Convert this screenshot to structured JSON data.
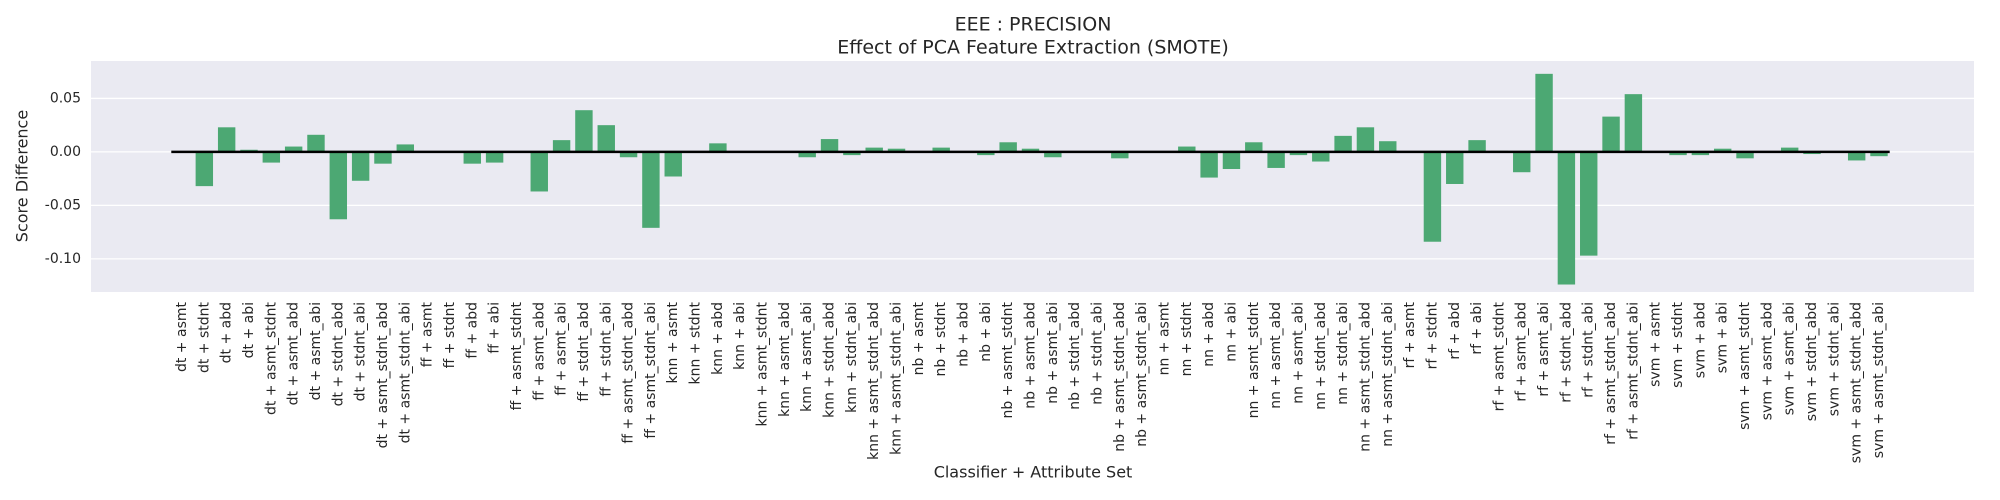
{
  "chart_data": {
    "type": "bar",
    "title": "EEE : PRECISION",
    "subtitle": "Effect of PCA Feature Extraction (SMOTE)",
    "x_label": "Classifier + Attribute Set",
    "y_label": "Score Difference",
    "categories": [
      "dt + asmt",
      "dt + stdnt",
      "dt + abd",
      "dt + abi",
      "dt + asmt_stdnt",
      "dt + asmt_abd",
      "dt + asmt_abi",
      "dt + stdnt_abd",
      "dt + stdnt_abi",
      "dt + asmt_stdnt_abd",
      "dt + asmt_stdnt_abi",
      "ff + asmt",
      "ff + stdnt",
      "ff + abd",
      "ff + abi",
      "ff + asmt_stdnt",
      "ff + asmt_abd",
      "ff + asmt_abi",
      "ff + stdnt_abd",
      "ff + stdnt_abi",
      "ff + asmt_stdnt_abd",
      "ff + asmt_stdnt_abi",
      "knn + asmt",
      "knn + stdnt",
      "knn + abd",
      "knn + abi",
      "knn + asmt_stdnt",
      "knn + asmt_abd",
      "knn + asmt_abi",
      "knn + stdnt_abd",
      "knn + stdnt_abi",
      "knn + asmt_stdnt_abd",
      "knn + asmt_stdnt_abi",
      "nb + asmt",
      "nb + stdnt",
      "nb + abd",
      "nb + abi",
      "nb + asmt_stdnt",
      "nb + asmt_abd",
      "nb + asmt_abi",
      "nb + stdnt_abd",
      "nb + stdnt_abi",
      "nb + asmt_stdnt_abd",
      "nb + asmt_stdnt_abi",
      "nn + asmt",
      "nn + stdnt",
      "nn + abd",
      "nn + abi",
      "nn + asmt_stdnt",
      "nn + asmt_abd",
      "nn + asmt_abi",
      "nn + stdnt_abd",
      "nn + stdnt_abi",
      "nn + asmt_stdnt_abd",
      "nn + asmt_stdnt_abi",
      "rf + asmt",
      "rf + stdnt",
      "rf + abd",
      "rf + abi",
      "rf + asmt_stdnt",
      "rf + asmt_abd",
      "rf + asmt_abi",
      "rf + stdnt_abd",
      "rf + stdnt_abi",
      "rf + asmt_stdnt_abd",
      "rf + asmt_stdnt_abi",
      "svm + asmt",
      "svm + stdnt",
      "svm + abd",
      "svm + abi",
      "svm + asmt_stdnt",
      "svm + asmt_abd",
      "svm + asmt_abi",
      "svm + stdnt_abd",
      "svm + stdnt_abi",
      "svm + asmt_stdnt_abd",
      "svm + asmt_stdnt_abi"
    ],
    "values": [
      0,
      -0.032,
      0.023,
      0.002,
      -0.01,
      0.005,
      0.016,
      -0.063,
      -0.027,
      -0.011,
      0.007,
      0,
      0,
      -0.011,
      -0.01,
      0,
      -0.037,
      0.011,
      0.039,
      0.025,
      -0.005,
      -0.071,
      -0.023,
      0,
      0.008,
      0,
      0,
      0,
      -0.005,
      0.012,
      -0.003,
      0.004,
      0.003,
      0,
      0.004,
      0,
      -0.003,
      0.009,
      0.003,
      -0.005,
      0,
      0,
      -0.006,
      0,
      0,
      0.005,
      -0.024,
      -0.016,
      0.009,
      -0.015,
      -0.003,
      -0.009,
      0.015,
      0.023,
      0.01,
      0,
      -0.084,
      -0.03,
      0.011,
      0.001,
      -0.019,
      0.073,
      -0.124,
      -0.097,
      0.033,
      0.054,
      0,
      -0.003,
      -0.003,
      0.003,
      -0.006,
      0,
      0.004,
      -0.002,
      0,
      -0.008,
      -0.004
    ],
    "color": "#4ca873",
    "hline": 0,
    "ylim": [
      -0.131,
      0.085
    ],
    "yticks": [
      {
        "value": -0.1,
        "label": "-0.10"
      },
      -0.05,
      {
        "value": 0,
        "label": "0.00"
      },
      0.05
    ],
    "grid": true
  }
}
